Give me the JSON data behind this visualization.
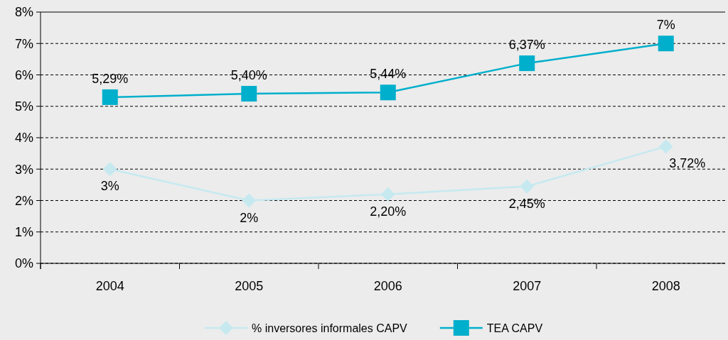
{
  "chart_data": {
    "type": "line",
    "categories": [
      "2004",
      "2005",
      "2006",
      "2007",
      "2008"
    ],
    "series": [
      {
        "name": "% inversores informales CAPV",
        "color": "#c6e9f0",
        "marker": "diamond",
        "values": [
          3,
          2,
          2.2,
          2.45,
          3.72
        ],
        "value_labels": [
          "3%",
          "2%",
          "2,20%",
          "2,45%",
          "3,72%"
        ]
      },
      {
        "name": "TEA CAPV",
        "color": "#00afcc",
        "marker": "square",
        "values": [
          5.29,
          5.4,
          5.44,
          6.37,
          7
        ],
        "value_labels": [
          "5,29%",
          "5,40%",
          "5,44%",
          "6,37%",
          "7%"
        ]
      }
    ],
    "ylim": [
      0,
      8
    ],
    "yticks": [
      {
        "value": 0,
        "label": "0%"
      },
      {
        "value": 1,
        "label": "1%"
      },
      {
        "value": 2,
        "label": "2%"
      },
      {
        "value": 3,
        "label": "3%"
      },
      {
        "value": 4,
        "label": "4%"
      },
      {
        "value": 5,
        "label": "5%"
      },
      {
        "value": 6,
        "label": "6%"
      },
      {
        "value": 7,
        "label": "7%"
      },
      {
        "value": 8,
        "label": "8%"
      }
    ],
    "grid": "y",
    "legend": "bottom"
  }
}
